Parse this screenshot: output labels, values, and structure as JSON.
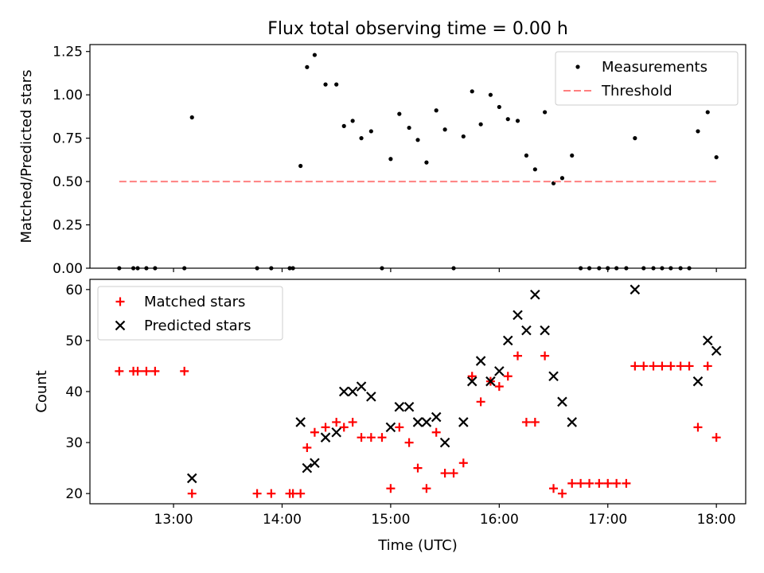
{
  "title": "Flux total observing time = 0.00 h",
  "xlabel": "Time (UTC)",
  "x_ticks": [
    "13:00",
    "14:00",
    "15:00",
    "16:00",
    "17:00",
    "18:00"
  ],
  "chart_data": [
    {
      "type": "scatter",
      "ylabel": "Matched/Predicted stars",
      "xlim": [
        12.23,
        18.27
      ],
      "ylim": [
        0,
        1.29
      ],
      "y_ticks": [
        "0.00",
        "0.25",
        "0.50",
        "0.75",
        "1.00",
        "1.25"
      ],
      "grid": false,
      "legend_position": "top-right",
      "series": [
        {
          "name": "Measurements",
          "color": "#000000",
          "marker": "dot",
          "points": [
            [
              12.5,
              0
            ],
            [
              12.63,
              0
            ],
            [
              12.67,
              0
            ],
            [
              12.75,
              0
            ],
            [
              12.83,
              0
            ],
            [
              13.1,
              0
            ],
            [
              13.17,
              0.87
            ],
            [
              13.77,
              0
            ],
            [
              13.9,
              0
            ],
            [
              14.07,
              0
            ],
            [
              14.1,
              0
            ],
            [
              14.17,
              0.59
            ],
            [
              14.23,
              1.16
            ],
            [
              14.3,
              1.23
            ],
            [
              14.4,
              1.06
            ],
            [
              14.5,
              1.06
            ],
            [
              14.57,
              0.82
            ],
            [
              14.65,
              0.85
            ],
            [
              14.73,
              0.75
            ],
            [
              14.82,
              0.79
            ],
            [
              14.92,
              0
            ],
            [
              15.0,
              0.63
            ],
            [
              15.08,
              0.89
            ],
            [
              15.17,
              0.81
            ],
            [
              15.25,
              0.74
            ],
            [
              15.33,
              0.61
            ],
            [
              15.42,
              0.91
            ],
            [
              15.5,
              0.8
            ],
            [
              15.58,
              0
            ],
            [
              15.67,
              0.76
            ],
            [
              15.75,
              1.02
            ],
            [
              15.83,
              0.83
            ],
            [
              15.92,
              1.0
            ],
            [
              16.0,
              0.93
            ],
            [
              16.08,
              0.86
            ],
            [
              16.17,
              0.85
            ],
            [
              16.25,
              0.65
            ],
            [
              16.33,
              0.57
            ],
            [
              16.42,
              0.9
            ],
            [
              16.5,
              0.49
            ],
            [
              16.58,
              0.52
            ],
            [
              16.67,
              0.65
            ],
            [
              16.75,
              0
            ],
            [
              16.83,
              0
            ],
            [
              16.92,
              0
            ],
            [
              17.0,
              0
            ],
            [
              17.08,
              0
            ],
            [
              17.17,
              0
            ],
            [
              17.25,
              0.75
            ],
            [
              17.33,
              0
            ],
            [
              17.42,
              0
            ],
            [
              17.5,
              0
            ],
            [
              17.58,
              0
            ],
            [
              17.67,
              0
            ],
            [
              17.75,
              0
            ],
            [
              17.83,
              0.79
            ],
            [
              17.92,
              0.9
            ],
            [
              18.0,
              0.64
            ]
          ]
        },
        {
          "name": "Threshold",
          "color": "#ff8080",
          "style": "dashed",
          "points": [
            [
              12.5,
              0.5
            ],
            [
              18.0,
              0.5
            ]
          ]
        }
      ]
    },
    {
      "type": "scatter",
      "ylabel": "Count",
      "xlim": [
        12.23,
        18.27
      ],
      "ylim": [
        18,
        62
      ],
      "y_ticks": [
        "20",
        "30",
        "40",
        "50",
        "60"
      ],
      "grid": false,
      "legend_position": "top-left",
      "series": [
        {
          "name": "Matched stars",
          "color": "#ff0000",
          "marker": "plus",
          "points": [
            [
              12.5,
              44
            ],
            [
              12.63,
              44
            ],
            [
              12.67,
              44
            ],
            [
              12.75,
              44
            ],
            [
              12.83,
              44
            ],
            [
              13.1,
              44
            ],
            [
              13.17,
              20
            ],
            [
              13.77,
              20
            ],
            [
              13.9,
              20
            ],
            [
              14.07,
              20
            ],
            [
              14.1,
              20
            ],
            [
              14.17,
              20
            ],
            [
              14.23,
              29
            ],
            [
              14.3,
              32
            ],
            [
              14.4,
              33
            ],
            [
              14.5,
              34
            ],
            [
              14.57,
              33
            ],
            [
              14.65,
              34
            ],
            [
              14.73,
              31
            ],
            [
              14.82,
              31
            ],
            [
              14.92,
              31
            ],
            [
              15.0,
              21
            ],
            [
              15.08,
              33
            ],
            [
              15.17,
              30
            ],
            [
              15.25,
              25
            ],
            [
              15.33,
              21
            ],
            [
              15.42,
              32
            ],
            [
              15.5,
              24
            ],
            [
              15.58,
              24
            ],
            [
              15.67,
              26
            ],
            [
              15.75,
              43
            ],
            [
              15.83,
              38
            ],
            [
              15.92,
              42
            ],
            [
              16.0,
              41
            ],
            [
              16.08,
              43
            ],
            [
              16.17,
              47
            ],
            [
              16.25,
              34
            ],
            [
              16.33,
              34
            ],
            [
              16.42,
              47
            ],
            [
              16.5,
              21
            ],
            [
              16.58,
              20
            ],
            [
              16.67,
              22
            ],
            [
              16.75,
              22
            ],
            [
              16.83,
              22
            ],
            [
              16.92,
              22
            ],
            [
              17.0,
              22
            ],
            [
              17.08,
              22
            ],
            [
              17.17,
              22
            ],
            [
              17.25,
              45
            ],
            [
              17.33,
              45
            ],
            [
              17.42,
              45
            ],
            [
              17.5,
              45
            ],
            [
              17.58,
              45
            ],
            [
              17.67,
              45
            ],
            [
              17.75,
              45
            ],
            [
              17.83,
              33
            ],
            [
              17.92,
              45
            ],
            [
              18.0,
              31
            ]
          ]
        },
        {
          "name": "Predicted stars",
          "color": "#000000",
          "marker": "x",
          "points": [
            [
              13.17,
              23
            ],
            [
              14.17,
              34
            ],
            [
              14.23,
              25
            ],
            [
              14.3,
              26
            ],
            [
              14.4,
              31
            ],
            [
              14.5,
              32
            ],
            [
              14.57,
              40
            ],
            [
              14.65,
              40
            ],
            [
              14.73,
              41
            ],
            [
              14.82,
              39
            ],
            [
              15.0,
              33
            ],
            [
              15.08,
              37
            ],
            [
              15.17,
              37
            ],
            [
              15.25,
              34
            ],
            [
              15.33,
              34
            ],
            [
              15.42,
              35
            ],
            [
              15.5,
              30
            ],
            [
              15.67,
              34
            ],
            [
              15.75,
              42
            ],
            [
              15.83,
              46
            ],
            [
              15.92,
              42
            ],
            [
              16.0,
              44
            ],
            [
              16.08,
              50
            ],
            [
              16.17,
              55
            ],
            [
              16.25,
              52
            ],
            [
              16.33,
              59
            ],
            [
              16.42,
              52
            ],
            [
              16.5,
              43
            ],
            [
              16.58,
              38
            ],
            [
              16.67,
              34
            ],
            [
              17.25,
              60
            ],
            [
              17.83,
              42
            ],
            [
              17.92,
              50
            ],
            [
              18.0,
              48
            ]
          ]
        }
      ]
    }
  ]
}
